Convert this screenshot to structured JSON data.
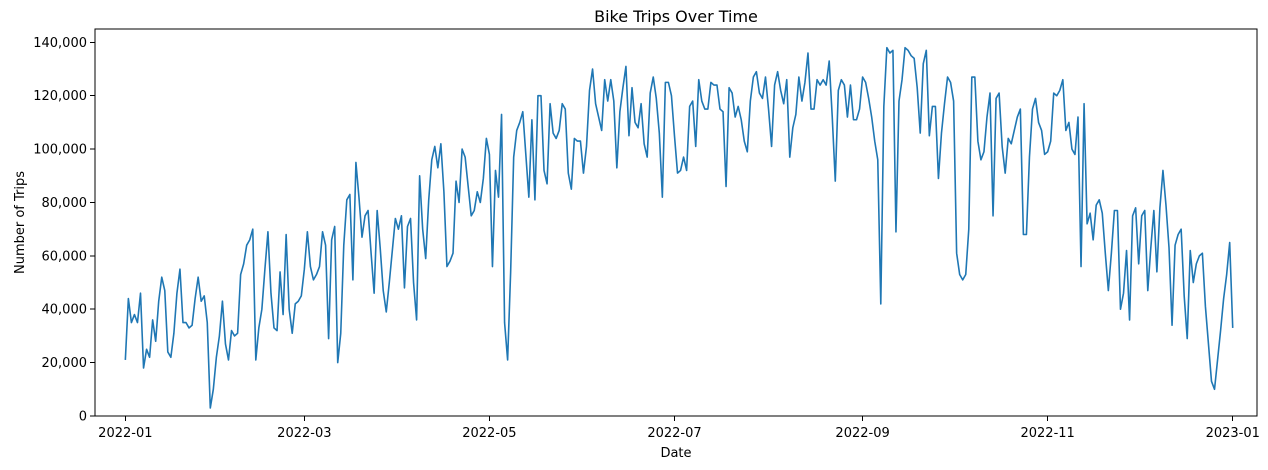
{
  "chart_data": {
    "type": "line",
    "title": "Bike Trips Over Time",
    "xlabel": "Date",
    "ylabel": "Number of Trips",
    "ylim": [
      0,
      145000
    ],
    "xlim": [
      "2021-12-22",
      "2023-01-09"
    ],
    "grid": false,
    "x_ticks": [
      "2022-01",
      "2022-03",
      "2022-05",
      "2022-07",
      "2022-09",
      "2022-11",
      "2023-01"
    ],
    "y_ticks": [
      0,
      20000,
      40000,
      60000,
      80000,
      100000,
      120000,
      140000
    ],
    "y_tick_labels": [
      "0",
      "20,000",
      "40,000",
      "60,000",
      "80,000",
      "100,000",
      "120,000",
      "140,000"
    ],
    "series": [
      {
        "color": "#1f77b4",
        "x_start": "2022-01-01",
        "x_step": "1 day",
        "values": [
          21000,
          44000,
          35000,
          38000,
          35000,
          46000,
          18000,
          25000,
          22000,
          36000,
          28000,
          43000,
          52000,
          47000,
          24000,
          22000,
          31000,
          46000,
          55000,
          35000,
          35000,
          33000,
          34000,
          44000,
          52000,
          43000,
          45000,
          35000,
          3000,
          10000,
          22000,
          30000,
          43000,
          27000,
          21000,
          32000,
          30000,
          31000,
          53000,
          57000,
          64000,
          66000,
          70000,
          21000,
          33000,
          40000,
          55000,
          69000,
          46000,
          33000,
          32000,
          54000,
          38000,
          68000,
          40000,
          31000,
          42000,
          43000,
          45000,
          55000,
          69000,
          56000,
          51000,
          53000,
          56000,
          69000,
          64000,
          29000,
          66000,
          71000,
          20000,
          31000,
          64000,
          81000,
          83000,
          51000,
          95000,
          82000,
          67000,
          75000,
          77000,
          61000,
          46000,
          77000,
          63000,
          47000,
          39000,
          50000,
          62000,
          74000,
          70000,
          75000,
          48000,
          71000,
          74000,
          50000,
          36000,
          90000,
          70000,
          59000,
          81000,
          96000,
          101000,
          93000,
          102000,
          84000,
          56000,
          58000,
          61000,
          88000,
          80000,
          100000,
          97000,
          86000,
          75000,
          77000,
          84000,
          80000,
          89000,
          104000,
          98000,
          56000,
          92000,
          82000,
          113000,
          35000,
          21000,
          54000,
          97000,
          107000,
          110000,
          114000,
          98000,
          82000,
          111000,
          81000,
          120000,
          120000,
          92000,
          87000,
          117000,
          106000,
          104000,
          107000,
          117000,
          115000,
          91000,
          85000,
          104000,
          103000,
          103000,
          91000,
          101000,
          122000,
          130000,
          117000,
          112000,
          107000,
          126000,
          118000,
          126000,
          118000,
          93000,
          114000,
          123000,
          131000,
          105000,
          123000,
          110000,
          108000,
          117000,
          102000,
          97000,
          121000,
          127000,
          119000,
          106000,
          82000,
          125000,
          125000,
          120000,
          105000,
          91000,
          92000,
          97000,
          92000,
          116000,
          118000,
          101000,
          126000,
          118000,
          115000,
          115000,
          125000,
          124000,
          124000,
          115000,
          114000,
          86000,
          123000,
          121000,
          112000,
          116000,
          111000,
          103000,
          99000,
          118000,
          127000,
          129000,
          121000,
          119000,
          127000,
          115000,
          101000,
          124000,
          129000,
          122000,
          117000,
          126000,
          97000,
          108000,
          113000,
          127000,
          118000,
          125000,
          136000,
          115000,
          115000,
          126000,
          124000,
          126000,
          124000,
          133000,
          112000,
          88000,
          122000,
          126000,
          124000,
          112000,
          124000,
          111000,
          111000,
          115000,
          127000,
          125000,
          119000,
          112000,
          103000,
          96000,
          42000,
          116000,
          138000,
          136000,
          137000,
          69000,
          118000,
          126000,
          138000,
          137000,
          135000,
          134000,
          123000,
          106000,
          132000,
          137000,
          105000,
          116000,
          116000,
          89000,
          106000,
          117000,
          127000,
          125000,
          118000,
          61000,
          53000,
          51000,
          53000,
          70000,
          127000,
          127000,
          103000,
          96000,
          99000,
          112000,
          121000,
          75000,
          119000,
          121000,
          101000,
          91000,
          104000,
          102000,
          107000,
          112000,
          115000,
          68000,
          68000,
          97000,
          115000,
          119000,
          110000,
          107000,
          98000,
          99000,
          103000,
          121000,
          120000,
          122000,
          126000,
          107000,
          110000,
          100000,
          98000,
          112000,
          56000,
          117000,
          72000,
          76000,
          66000,
          79000,
          81000,
          76000,
          61000,
          47000,
          61000,
          77000,
          77000,
          40000,
          46000,
          62000,
          36000,
          75000,
          78000,
          57000,
          75000,
          77000,
          47000,
          63000,
          77000,
          54000,
          78000,
          92000,
          79000,
          63000,
          34000,
          64000,
          68000,
          70000,
          45000,
          29000,
          62000,
          50000,
          57000,
          60000,
          61000,
          41000,
          27000,
          13000,
          10000,
          21000,
          32000,
          44000,
          53000,
          65000,
          33000
        ]
      }
    ]
  }
}
